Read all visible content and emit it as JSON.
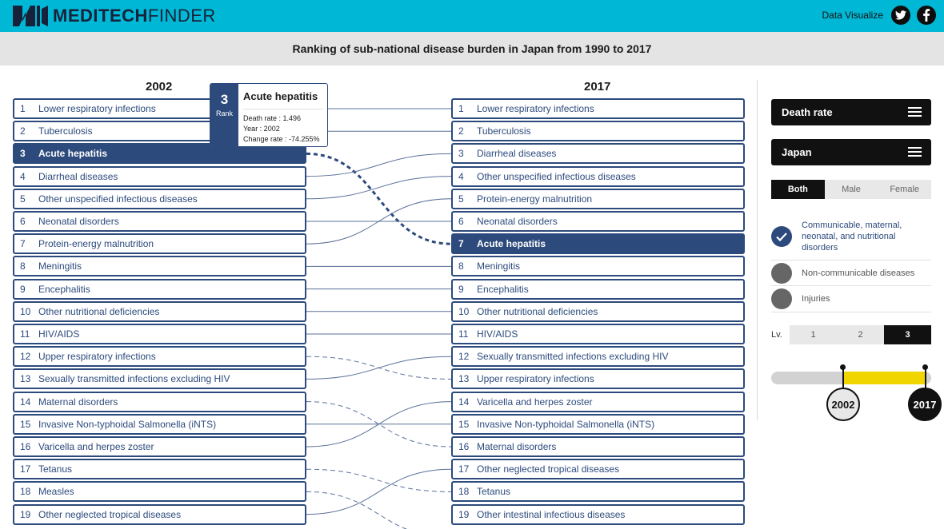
{
  "header": {
    "brand_bold": "MEDITECH",
    "brand_light": "FINDER",
    "right_label": "Data Visualize",
    "twitter_icon": "twitter-icon",
    "facebook_icon": "facebook-icon"
  },
  "page_title": "Ranking of sub-national disease burden in Japan from 1990 to 2017",
  "left_year": "2002",
  "right_year": "2017",
  "left_list": [
    {
      "rank": "1",
      "label": "Lower respiratory infections"
    },
    {
      "rank": "2",
      "label": "Tuberculosis"
    },
    {
      "rank": "3",
      "label": "Acute hepatitis"
    },
    {
      "rank": "4",
      "label": "Diarrheal diseases"
    },
    {
      "rank": "5",
      "label": "Other unspecified infectious diseases"
    },
    {
      "rank": "6",
      "label": "Neonatal disorders"
    },
    {
      "rank": "7",
      "label": "Protein-energy malnutrition"
    },
    {
      "rank": "8",
      "label": "Meningitis"
    },
    {
      "rank": "9",
      "label": "Encephalitis"
    },
    {
      "rank": "10",
      "label": "Other nutritional deficiencies"
    },
    {
      "rank": "11",
      "label": "HIV/AIDS"
    },
    {
      "rank": "12",
      "label": "Upper respiratory infections"
    },
    {
      "rank": "13",
      "label": "Sexually transmitted infections excluding HIV"
    },
    {
      "rank": "14",
      "label": "Maternal disorders"
    },
    {
      "rank": "15",
      "label": "Invasive Non-typhoidal Salmonella (iNTS)"
    },
    {
      "rank": "16",
      "label": "Varicella and herpes zoster"
    },
    {
      "rank": "17",
      "label": "Tetanus"
    },
    {
      "rank": "18",
      "label": "Measles"
    },
    {
      "rank": "19",
      "label": "Other neglected tropical diseases"
    }
  ],
  "right_list": [
    {
      "rank": "1",
      "label": "Lower respiratory infections"
    },
    {
      "rank": "2",
      "label": "Tuberculosis"
    },
    {
      "rank": "3",
      "label": "Diarrheal diseases"
    },
    {
      "rank": "4",
      "label": "Other unspecified infectious diseases"
    },
    {
      "rank": "5",
      "label": "Protein-energy malnutrition"
    },
    {
      "rank": "6",
      "label": "Neonatal disorders"
    },
    {
      "rank": "7",
      "label": "Acute hepatitis"
    },
    {
      "rank": "8",
      "label": "Meningitis"
    },
    {
      "rank": "9",
      "label": "Encephalitis"
    },
    {
      "rank": "10",
      "label": "Other nutritional deficiencies"
    },
    {
      "rank": "11",
      "label": "HIV/AIDS"
    },
    {
      "rank": "12",
      "label": "Sexually transmitted infections excluding HIV"
    },
    {
      "rank": "13",
      "label": "Upper respiratory infections"
    },
    {
      "rank": "14",
      "label": "Varicella and herpes zoster"
    },
    {
      "rank": "15",
      "label": "Invasive Non-typhoidal Salmonella (iNTS)"
    },
    {
      "rank": "16",
      "label": "Maternal disorders"
    },
    {
      "rank": "17",
      "label": "Other neglected tropical diseases"
    },
    {
      "rank": "18",
      "label": "Tetanus"
    },
    {
      "rank": "19",
      "label": "Other intestinal infectious diseases"
    }
  ],
  "highlighted": "Acute hepatitis",
  "links": [
    {
      "from": 1,
      "to": 1,
      "dashed": false
    },
    {
      "from": 2,
      "to": 2,
      "dashed": false
    },
    {
      "from": 3,
      "to": 7,
      "dashed": true,
      "highlight": true
    },
    {
      "from": 4,
      "to": 3,
      "dashed": false
    },
    {
      "from": 5,
      "to": 4,
      "dashed": false
    },
    {
      "from": 6,
      "to": 6,
      "dashed": false
    },
    {
      "from": 7,
      "to": 5,
      "dashed": false
    },
    {
      "from": 8,
      "to": 8,
      "dashed": false
    },
    {
      "from": 9,
      "to": 9,
      "dashed": false
    },
    {
      "from": 10,
      "to": 10,
      "dashed": false
    },
    {
      "from": 11,
      "to": 11,
      "dashed": false
    },
    {
      "from": 12,
      "to": 13,
      "dashed": true
    },
    {
      "from": 13,
      "to": 12,
      "dashed": false
    },
    {
      "from": 14,
      "to": 16,
      "dashed": true
    },
    {
      "from": 15,
      "to": 15,
      "dashed": false
    },
    {
      "from": 16,
      "to": 14,
      "dashed": false
    },
    {
      "from": 17,
      "to": 18,
      "dashed": true
    },
    {
      "from": 18,
      "to": 20,
      "dashed": true
    },
    {
      "from": 19,
      "to": 17,
      "dashed": false
    }
  ],
  "tooltip": {
    "rank": "3",
    "rank_label": "Rank",
    "name": "Acute hepatitis",
    "death_rate": "Death rate : 1.496",
    "year": "Year : 2002",
    "change_rate": "Change rate : -74.255%"
  },
  "sidebar": {
    "measure": "Death rate",
    "location": "Japan",
    "sex_options": [
      "Both",
      "Male",
      "Female"
    ],
    "sex_selected": "Both",
    "categories": [
      {
        "label": "Communicable, maternal, neonatal, and nutritional disorders",
        "selected": true
      },
      {
        "label": "Non-communicable diseases",
        "selected": false
      },
      {
        "label": "Injuries",
        "selected": false
      }
    ],
    "level_label": "Lv.",
    "levels": [
      "1",
      "2",
      "3"
    ],
    "level_selected": "3",
    "year_start": "2002",
    "year_end": "2017",
    "colors": {
      "accent": "#00b7d5",
      "navy": "#2c4a7c",
      "yellow": "#f1d500"
    }
  }
}
